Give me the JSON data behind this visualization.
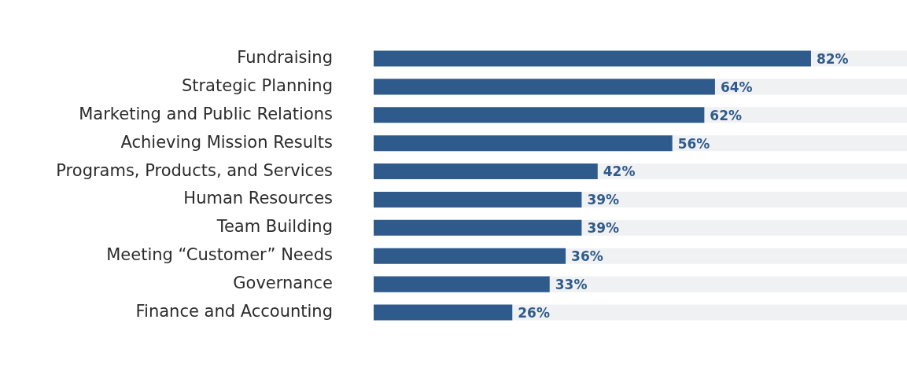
{
  "chart_data": {
    "type": "bar",
    "orientation": "horizontal",
    "categories": [
      "Fundraising",
      "Strategic Planning",
      "Marketing and Public Relations",
      "Achieving Mission Results",
      "Programs, Products, and Services",
      "Human Resources",
      "Team Building",
      "Meeting “Customer” Needs",
      "Governance",
      "Finance and Accounting"
    ],
    "values": [
      82,
      64,
      62,
      56,
      42,
      39,
      39,
      36,
      33,
      26
    ],
    "value_labels": [
      "82%",
      "64%",
      "62%",
      "56%",
      "42%",
      "39%",
      "39%",
      "36%",
      "33%",
      "26%"
    ],
    "color": "#2f5b8c",
    "xlim": [
      0,
      100
    ],
    "tick_labels": "y",
    "legend": false
  }
}
